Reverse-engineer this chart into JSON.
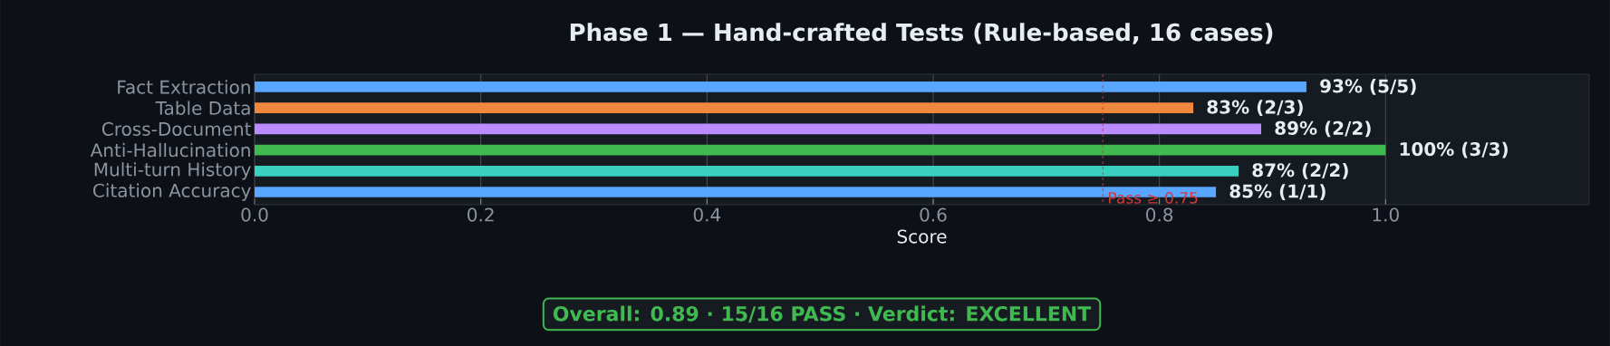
{
  "chart_data": {
    "type": "bar",
    "orientation": "horizontal",
    "title": "Phase 1 — Hand-crafted Tests (Rule-based, 16 cases)",
    "xlabel": "Score",
    "categories": [
      "Fact Extraction",
      "Table Data",
      "Cross-Document",
      "Anti-Hallucination",
      "Multi-turn History",
      "Citation Accuracy"
    ],
    "values": [
      0.93,
      0.83,
      0.89,
      1.0,
      0.87,
      0.85
    ],
    "colors": [
      "#58a6ff",
      "#f0883e",
      "#bc8cff",
      "#3fb950",
      "#39d0c0",
      "#58a6ff"
    ],
    "value_labels": [
      "93%  (5/5)",
      "83%  (2/3)",
      "89%  (2/2)",
      "100%  (3/3)",
      "87%  (2/2)",
      "85%  (1/1)"
    ],
    "xlim": [
      0,
      1.18
    ],
    "xticks": [
      {
        "value": 0,
        "label": "0.0"
      },
      {
        "value": 0.2,
        "label": "0.2"
      },
      {
        "value": 0.4,
        "label": "0.4"
      },
      {
        "value": 0.6,
        "label": "0.6"
      },
      {
        "value": 0.8,
        "label": "0.8"
      },
      {
        "value": 1.0,
        "label": "1.0"
      }
    ],
    "grid": "x",
    "ref_lines": [
      {
        "axis": "x",
        "value": 0.75,
        "label": "Pass ≥ 0.75",
        "color": "#da3633",
        "line_style": "dashed"
      }
    ],
    "annotations": [
      "Overall: 0.89  ·  15/16 PASS  ·  Verdict: EXCELLENT"
    ]
  }
}
